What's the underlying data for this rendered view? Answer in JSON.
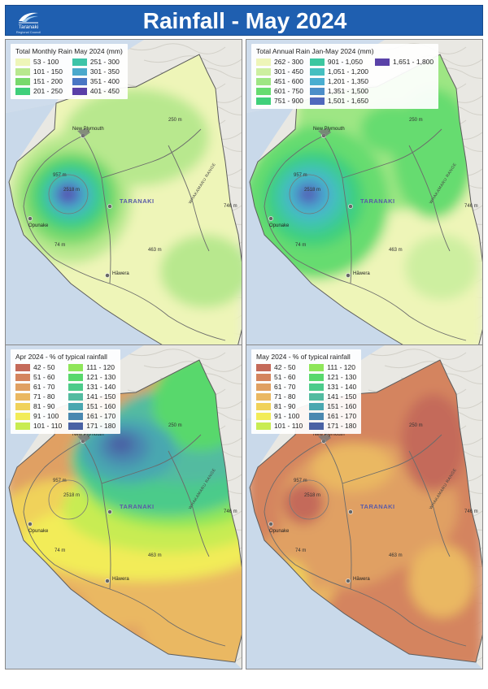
{
  "header": {
    "title": "Rainfall - May 2024",
    "logo_name": "Taranaki",
    "logo_sub": "Regional Council"
  },
  "map_labels": {
    "new_plymouth": "New Plymouth",
    "opunake": "Opunake",
    "hawera": "Hāwera",
    "region": "TARANAKI",
    "ranges": "WHAKAMARU RANGE",
    "spot_2518": "2518 m",
    "spot_957": "957 m",
    "spot_250": "250 m",
    "spot_746": "746 m",
    "spot_74": "74 m",
    "spot_463": "463 m"
  },
  "panels": [
    {
      "id": "monthly",
      "legend_title": "Total Monthly Rain May 2024 (mm)",
      "rows": 4,
      "classes": [
        {
          "label": "53 - 100",
          "color": "#eef5b8"
        },
        {
          "label": "101 - 150",
          "color": "#b8e88e"
        },
        {
          "label": "151 - 200",
          "color": "#78d96c"
        },
        {
          "label": "201 - 250",
          "color": "#3fcf7a"
        },
        {
          "label": "251 - 300",
          "color": "#3dc4a8"
        },
        {
          "label": "301 - 350",
          "color": "#4ba9cc"
        },
        {
          "label": "351 - 400",
          "color": "#4a76c4"
        },
        {
          "label": "401 - 450",
          "color": "#5a3fa8"
        }
      ]
    },
    {
      "id": "annual",
      "legend_title": "Total Annual Rain Jan-May 2024 (mm)",
      "rows": 5,
      "classes": [
        {
          "label": "262 - 300",
          "color": "#eef5b8"
        },
        {
          "label": "301 - 450",
          "color": "#cdefa0"
        },
        {
          "label": "451 - 600",
          "color": "#9ee684"
        },
        {
          "label": "601 - 750",
          "color": "#66dc70"
        },
        {
          "label": "751 - 900",
          "color": "#3fd07a"
        },
        {
          "label": "901 - 1,050",
          "color": "#3cc7a0"
        },
        {
          "label": "1,051 - 1,200",
          "color": "#45bfc0"
        },
        {
          "label": "1,201 - 1,350",
          "color": "#4aaed0"
        },
        {
          "label": "1,351 - 1,500",
          "color": "#4c8ec8"
        },
        {
          "label": "1,501 - 1,650",
          "color": "#5068bc"
        },
        {
          "label": "1,651 - 1,800",
          "color": "#5a42a8"
        }
      ]
    },
    {
      "id": "apr_pct",
      "legend_title": "Apr 2024 - % of typical rainfall",
      "rows": 7,
      "classes": [
        {
          "label": "42 - 50",
          "color": "#c46a5a"
        },
        {
          "label": "51 - 60",
          "color": "#d4845e"
        },
        {
          "label": "61 - 70",
          "color": "#e0a063"
        },
        {
          "label": "71 - 80",
          "color": "#eab862"
        },
        {
          "label": "81 - 90",
          "color": "#f0d25a"
        },
        {
          "label": "91 - 100",
          "color": "#f2ec58"
        },
        {
          "label": "101 - 110",
          "color": "#c8ec52"
        },
        {
          "label": "111 - 120",
          "color": "#8ee65a"
        },
        {
          "label": "121 - 130",
          "color": "#58d86c"
        },
        {
          "label": "131 - 140",
          "color": "#4ccb8a"
        },
        {
          "label": "141 - 150",
          "color": "#52bba0"
        },
        {
          "label": "151 - 160",
          "color": "#4aa7b0"
        },
        {
          "label": "161 - 170",
          "color": "#4a88b0"
        },
        {
          "label": "171 - 180",
          "color": "#4a62a4"
        }
      ]
    },
    {
      "id": "may_pct",
      "legend_title": "May 2024 - % of typical rainfall",
      "rows": 7,
      "classes": [
        {
          "label": "42 - 50",
          "color": "#c46a5a"
        },
        {
          "label": "51 - 60",
          "color": "#d4845e"
        },
        {
          "label": "61 - 70",
          "color": "#e0a063"
        },
        {
          "label": "71 - 80",
          "color": "#eab862"
        },
        {
          "label": "81 - 90",
          "color": "#f0d25a"
        },
        {
          "label": "91 - 100",
          "color": "#f2ec58"
        },
        {
          "label": "101 - 110",
          "color": "#c8ec52"
        },
        {
          "label": "111 - 120",
          "color": "#8ee65a"
        },
        {
          "label": "121 - 130",
          "color": "#58d86c"
        },
        {
          "label": "131 - 140",
          "color": "#4ccb8a"
        },
        {
          "label": "141 - 150",
          "color": "#52bba0"
        },
        {
          "label": "151 - 160",
          "color": "#4aa7b0"
        },
        {
          "label": "161 - 170",
          "color": "#4a88b0"
        },
        {
          "label": "171 - 180",
          "color": "#4a62a4"
        }
      ]
    }
  ]
}
